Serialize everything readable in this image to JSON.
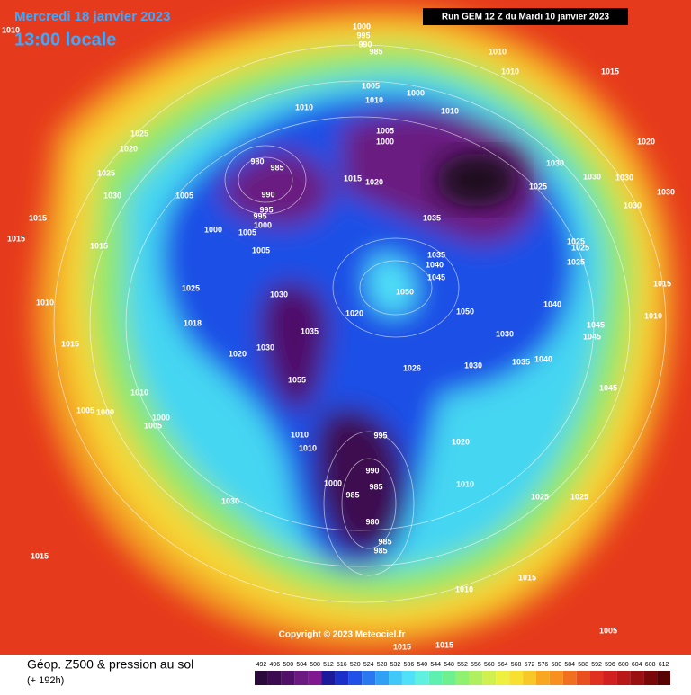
{
  "header": {
    "date": "Mercredi 18 janvier 2023",
    "time": "13:00 locale",
    "run": "Run GEM 12 Z du Mardi 10 janvier 2023"
  },
  "copyright": "Copyright © 2023 Meteociel.fr",
  "footer": {
    "title": "Géop. Z500 & pression au sol",
    "lead": "(+ 192h)"
  },
  "colorbar": {
    "labels": [
      492,
      496,
      500,
      504,
      508,
      512,
      516,
      520,
      524,
      528,
      532,
      536,
      540,
      544,
      548,
      552,
      556,
      560,
      564,
      568,
      572,
      576,
      580,
      584,
      588,
      592,
      596,
      600,
      604,
      608,
      612
    ],
    "colors": [
      "#2a0a3a",
      "#3c0a50",
      "#50106a",
      "#6a1a80",
      "#801890",
      "#1a1a9a",
      "#1a30c8",
      "#1f50e8",
      "#2a78f0",
      "#30a0f5",
      "#40c8f8",
      "#50e0f8",
      "#60f0e0",
      "#5ef0b0",
      "#6ef090",
      "#90f070",
      "#b0f060",
      "#d0f050",
      "#eef040",
      "#f8e030",
      "#f8c828",
      "#f8a820",
      "#f89020",
      "#f07020",
      "#e85020",
      "#e03020",
      "#d02020",
      "#b81818",
      "#9a1010",
      "#7a0808",
      "#580404"
    ]
  },
  "pressure_labels": [
    "1010",
    "1000",
    "995",
    "990",
    "985",
    "1010",
    "1010",
    "1015",
    "1005",
    "1000",
    "1010",
    "1010",
    "1010",
    "1025",
    "1005",
    "1000",
    "1020",
    "1020",
    "980",
    "985",
    "1030",
    "1025",
    "1015",
    "1020",
    "1030",
    "1030",
    "1025",
    "1030",
    "1005",
    "990",
    "1030",
    "995",
    "995",
    "1030",
    "1015",
    "1035",
    "1000",
    "1005",
    "1000",
    "1015",
    "1015",
    "1005",
    "1025",
    "1025",
    "1035",
    "1040",
    "1025",
    "1045",
    "1025",
    "1030",
    "1050",
    "1015",
    "1010",
    "1040",
    "1020",
    "1050",
    "1010",
    "1018",
    "1045",
    "1035",
    "1045",
    "1030",
    "1015",
    "1030",
    "1020",
    "1040",
    "1035",
    "1026",
    "1030",
    "1055",
    "1010",
    "1045",
    "1005",
    "1000",
    "1000",
    "1005",
    "1010",
    "995",
    "1020",
    "1010",
    "990",
    "1000",
    "985",
    "1010",
    "985",
    "1025",
    "1025",
    "1030",
    "980",
    "985",
    "985",
    "1015",
    "1015",
    "1010",
    "1005",
    "1015",
    "1015"
  ]
}
